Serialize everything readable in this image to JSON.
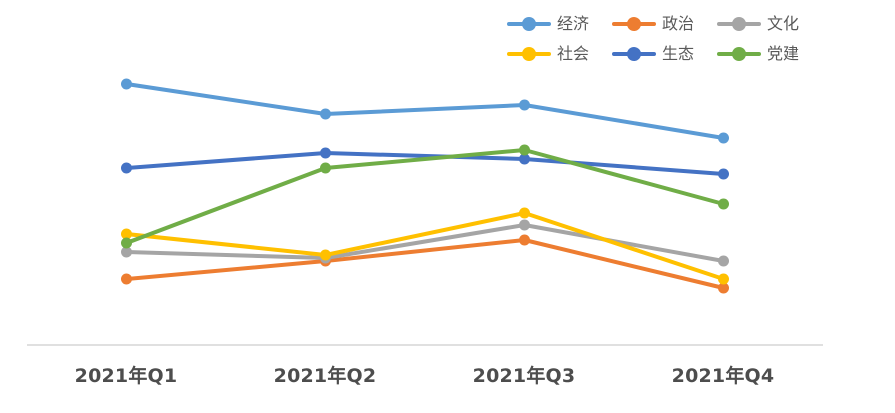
{
  "chart_data": {
    "type": "line",
    "title": "",
    "xlabel": "",
    "ylabel": "",
    "ylim": [
      0,
      100
    ],
    "grid": false,
    "y_axis_visible": false,
    "legend_position": "top-right",
    "marker": "circle",
    "axis_color": "#d6d6d6",
    "x_label_color": "#4d4d4d",
    "legend_text_color": "#595959",
    "categories": [
      "2021年Q1",
      "2021年Q2",
      "2021年Q3",
      "2021年Q4"
    ],
    "series": [
      {
        "key": "economy",
        "name": "经济",
        "color": "#5B9BD5",
        "values": [
          87,
          77,
          80,
          69
        ]
      },
      {
        "key": "politics",
        "name": "政治",
        "color": "#ED7D31",
        "values": [
          22,
          28,
          35,
          19
        ]
      },
      {
        "key": "culture",
        "name": "文化",
        "color": "#A5A5A5",
        "values": [
          31,
          29,
          40,
          28
        ]
      },
      {
        "key": "society",
        "name": "社会",
        "color": "#FFC000",
        "values": [
          37,
          30,
          44,
          22
        ]
      },
      {
        "key": "ecology",
        "name": "生态",
        "color": "#4472C4",
        "values": [
          59,
          64,
          62,
          57
        ]
      },
      {
        "key": "party",
        "name": "党建",
        "color": "#70AD47",
        "values": [
          34,
          59,
          65,
          47
        ]
      }
    ]
  }
}
